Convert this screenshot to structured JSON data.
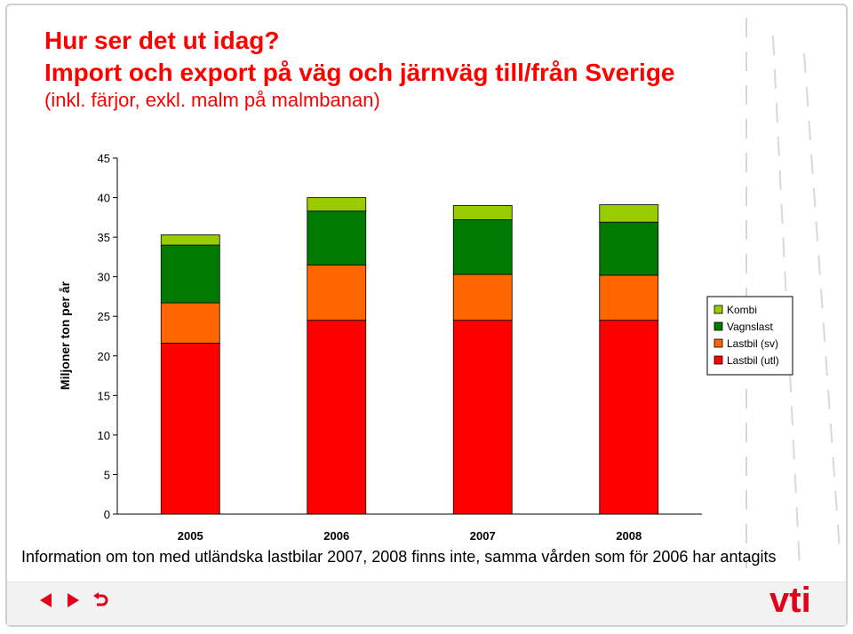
{
  "slide": {
    "title_line1": "Hur ser det ut idag?",
    "title_line2": "Import och export på väg och järnväg till/från Sverige",
    "subtitle": "(inkl. färjor, exkl. malm på malmbanan)",
    "footnote": "Information om ton med utländska lastbilar 2007, 2008 finns inte, samma vården som för 2006 har antagits",
    "logo_text": "vti"
  },
  "nav_icons": [
    "prev-arrow-icon",
    "next-arrow-icon",
    "return-icon"
  ],
  "colors": {
    "title": "#ff0000",
    "kombi": "#99cc00",
    "vagnslast": "#007a00",
    "lastbil_sv": "#ff6600",
    "lastbil_utl": "#ff0000",
    "logo": "#e2001a"
  },
  "chart_data": {
    "type": "bar",
    "stacked": true,
    "ylabel": "Miljoner ton per år",
    "xlabel": "",
    "ylim": [
      0,
      45
    ],
    "yticks": [
      0,
      5,
      10,
      15,
      20,
      25,
      30,
      35,
      40,
      45
    ],
    "categories": [
      "2005",
      "2006",
      "2007",
      "2008"
    ],
    "series": [
      {
        "name": "Lastbil (utl)",
        "color": "#ff0000",
        "values": [
          21.6,
          24.5,
          24.5,
          24.5
        ]
      },
      {
        "name": "Lastbil (sv)",
        "color": "#ff6600",
        "values": [
          5.1,
          7.0,
          5.8,
          5.7
        ]
      },
      {
        "name": "Vagnslast",
        "color": "#007a00",
        "values": [
          7.3,
          6.8,
          6.9,
          6.7
        ]
      },
      {
        "name": "Kombi",
        "color": "#99cc00",
        "values": [
          1.3,
          1.7,
          1.8,
          2.2
        ]
      }
    ],
    "legend_order": [
      "Kombi",
      "Vagnslast",
      "Lastbil (sv)",
      "Lastbil (utl)"
    ],
    "legend_position": "right",
    "grid": false
  }
}
